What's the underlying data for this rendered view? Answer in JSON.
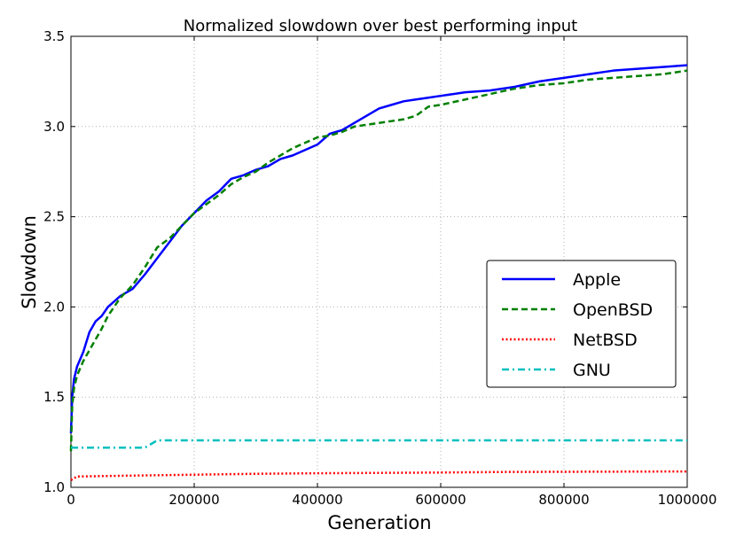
{
  "chart_data": {
    "type": "line",
    "title": "Normalized slowdown over best performing input",
    "xlabel": "Generation",
    "ylabel": "Slowdown",
    "xlim": [
      0,
      1000000
    ],
    "ylim": [
      1.0,
      3.5
    ],
    "xticks": [
      "0",
      "200000",
      "400000",
      "600000",
      "800000",
      "1000000"
    ],
    "yticks": [
      "1.0",
      "1.5",
      "2.0",
      "2.5",
      "3.0",
      "3.5"
    ],
    "grid": true,
    "legend_position": "center-right",
    "series": [
      {
        "name": "Apple",
        "color": "#0000ff",
        "style": "solid",
        "points": [
          [
            0,
            1.3
          ],
          [
            2000,
            1.5
          ],
          [
            5000,
            1.6
          ],
          [
            10000,
            1.67
          ],
          [
            20000,
            1.75
          ],
          [
            30000,
            1.86
          ],
          [
            40000,
            1.92
          ],
          [
            50000,
            1.95
          ],
          [
            60000,
            2.0
          ],
          [
            80000,
            2.06
          ],
          [
            100000,
            2.1
          ],
          [
            120000,
            2.18
          ],
          [
            140000,
            2.27
          ],
          [
            160000,
            2.36
          ],
          [
            180000,
            2.45
          ],
          [
            200000,
            2.52
          ],
          [
            220000,
            2.59
          ],
          [
            240000,
            2.64
          ],
          [
            260000,
            2.71
          ],
          [
            280000,
            2.73
          ],
          [
            300000,
            2.76
          ],
          [
            320000,
            2.78
          ],
          [
            340000,
            2.82
          ],
          [
            360000,
            2.84
          ],
          [
            380000,
            2.87
          ],
          [
            400000,
            2.9
          ],
          [
            420000,
            2.96
          ],
          [
            440000,
            2.98
          ],
          [
            460000,
            3.02
          ],
          [
            480000,
            3.06
          ],
          [
            500000,
            3.1
          ],
          [
            520000,
            3.12
          ],
          [
            540000,
            3.14
          ],
          [
            560000,
            3.15
          ],
          [
            580000,
            3.16
          ],
          [
            600000,
            3.17
          ],
          [
            640000,
            3.19
          ],
          [
            680000,
            3.2
          ],
          [
            720000,
            3.22
          ],
          [
            760000,
            3.25
          ],
          [
            800000,
            3.27
          ],
          [
            840000,
            3.29
          ],
          [
            880000,
            3.31
          ],
          [
            920000,
            3.32
          ],
          [
            960000,
            3.33
          ],
          [
            1000000,
            3.34
          ]
        ]
      },
      {
        "name": "OpenBSD",
        "color": "#008000",
        "style": "dashed",
        "points": [
          [
            0,
            1.2
          ],
          [
            2000,
            1.45
          ],
          [
            5000,
            1.55
          ],
          [
            10000,
            1.62
          ],
          [
            20000,
            1.7
          ],
          [
            30000,
            1.76
          ],
          [
            40000,
            1.82
          ],
          [
            50000,
            1.88
          ],
          [
            60000,
            1.95
          ],
          [
            80000,
            2.05
          ],
          [
            100000,
            2.12
          ],
          [
            120000,
            2.22
          ],
          [
            140000,
            2.33
          ],
          [
            160000,
            2.38
          ],
          [
            180000,
            2.45
          ],
          [
            200000,
            2.52
          ],
          [
            220000,
            2.57
          ],
          [
            240000,
            2.62
          ],
          [
            260000,
            2.68
          ],
          [
            280000,
            2.72
          ],
          [
            300000,
            2.75
          ],
          [
            320000,
            2.8
          ],
          [
            340000,
            2.84
          ],
          [
            360000,
            2.88
          ],
          [
            380000,
            2.91
          ],
          [
            400000,
            2.94
          ],
          [
            420000,
            2.95
          ],
          [
            440000,
            2.97
          ],
          [
            460000,
            3.0
          ],
          [
            480000,
            3.01
          ],
          [
            500000,
            3.02
          ],
          [
            520000,
            3.03
          ],
          [
            540000,
            3.04
          ],
          [
            560000,
            3.06
          ],
          [
            580000,
            3.11
          ],
          [
            600000,
            3.12
          ],
          [
            640000,
            3.15
          ],
          [
            680000,
            3.18
          ],
          [
            720000,
            3.21
          ],
          [
            760000,
            3.23
          ],
          [
            800000,
            3.24
          ],
          [
            840000,
            3.26
          ],
          [
            880000,
            3.27
          ],
          [
            920000,
            3.28
          ],
          [
            960000,
            3.29
          ],
          [
            1000000,
            3.31
          ]
        ]
      },
      {
        "name": "NetBSD",
        "color": "#ff0000",
        "style": "dotted",
        "points": [
          [
            0,
            1.04
          ],
          [
            5000,
            1.05
          ],
          [
            10000,
            1.06
          ],
          [
            100000,
            1.065
          ],
          [
            200000,
            1.07
          ],
          [
            300000,
            1.075
          ],
          [
            400000,
            1.078
          ],
          [
            500000,
            1.08
          ],
          [
            600000,
            1.082
          ],
          [
            700000,
            1.085
          ],
          [
            800000,
            1.086
          ],
          [
            900000,
            1.087
          ],
          [
            1000000,
            1.088
          ]
        ]
      },
      {
        "name": "GNU",
        "color": "#00bfbf",
        "style": "dashdot",
        "points": [
          [
            0,
            1.22
          ],
          [
            100000,
            1.22
          ],
          [
            120000,
            1.22
          ],
          [
            130000,
            1.24
          ],
          [
            140000,
            1.26
          ],
          [
            300000,
            1.26
          ],
          [
            600000,
            1.26
          ],
          [
            1000000,
            1.26
          ]
        ]
      }
    ]
  }
}
